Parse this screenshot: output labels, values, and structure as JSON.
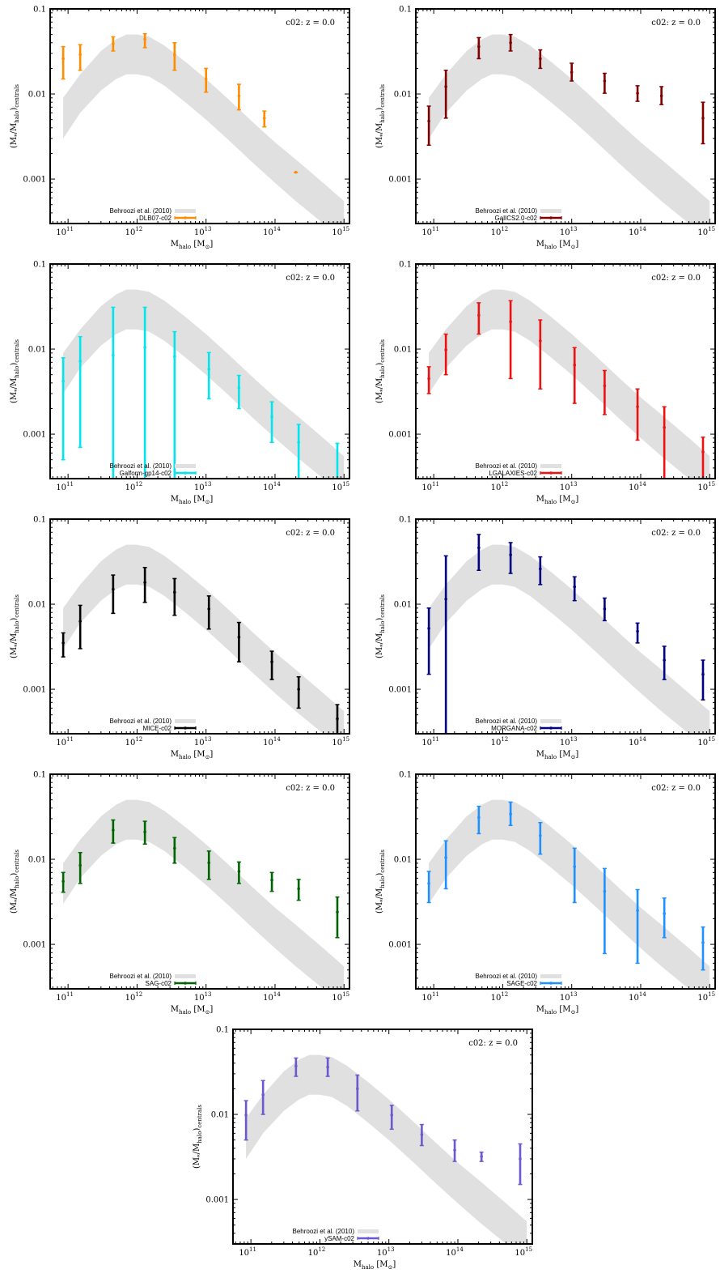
{
  "common": {
    "xlabel": "M_halo [M_sun]",
    "ylabel": "(M*/M_halo)_centrals",
    "x_ticks": [
      100000000000.0,
      1000000000000.0,
      10000000000000.0,
      100000000000000.0,
      1000000000000000.0
    ],
    "x_tick_labels": [
      "11",
      "12",
      "13",
      "14",
      "15"
    ],
    "y_ticks": [
      0.001,
      0.01,
      0.1
    ],
    "y_tick_labels": [
      "0.001",
      "0.01",
      "0.1"
    ],
    "xlim": [
      55000000000.0,
      1200000000000000.0
    ],
    "ylim": [
      0.0003,
      0.1
    ],
    "log_x": true,
    "log_y": true,
    "band_label": "Behroozi et al. (2010)",
    "band_color": "#e0e0e0",
    "band": {
      "x": [
        85000000000.0,
        150000000000.0,
        300000000000.0,
        500000000000.0,
        700000000000.0,
        1000000000000.0,
        1500000000000.0,
        2500000000000.0,
        5000000000000.0,
        10000000000000.0,
        20000000000000.0,
        50000000000000.0,
        100000000000000.0,
        200000000000000.0,
        500000000000000.0,
        1000000000000000.0
      ],
      "upper": [
        0.009,
        0.017,
        0.032,
        0.044,
        0.05,
        0.05,
        0.047,
        0.037,
        0.024,
        0.015,
        0.009,
        0.0045,
        0.0027,
        0.0017,
        0.0009,
        0.00055
      ],
      "lower": [
        0.003,
        0.006,
        0.011,
        0.015,
        0.017,
        0.017,
        0.016,
        0.0125,
        0.008,
        0.005,
        0.003,
        0.0015,
        0.0009,
        0.00055,
        0.0003,
        0.00018
      ]
    }
  },
  "chart_data": [
    {
      "type": "scatter",
      "title": "c02: z = 0.0",
      "series": [
        {
          "name": "DLB07-c02",
          "color": "#ff8c00",
          "x": [
            85000000000.0,
            150000000000.0,
            450000000000.0,
            1300000000000.0,
            3500000000000.0,
            10000000000000.0,
            30000000000000.0,
            70000000000000.0,
            200000000000000.0
          ],
          "y": [
            0.026,
            0.029,
            0.039,
            0.044,
            0.029,
            0.015,
            0.0095,
            0.0052,
            0.0012
          ],
          "y_low": [
            0.015,
            0.019,
            0.032,
            0.035,
            0.019,
            0.0105,
            0.0065,
            0.0041,
            0.0012
          ],
          "y_high": [
            0.036,
            0.038,
            0.047,
            0.051,
            0.04,
            0.02,
            0.013,
            0.0063,
            0.0012
          ]
        }
      ]
    },
    {
      "type": "scatter",
      "title": "c02: z = 0.0",
      "series": [
        {
          "name": "GalICS2.0-c02",
          "color": "#800000",
          "x": [
            85000000000.0,
            150000000000.0,
            450000000000.0,
            1300000000000.0,
            3500000000000.0,
            10000000000000.0,
            30000000000000.0,
            90000000000000.0,
            200000000000000.0,
            800000000000000.0
          ],
          "y": [
            0.0048,
            0.0122,
            0.036,
            0.04,
            0.026,
            0.018,
            0.0142,
            0.0102,
            0.0095,
            0.0052
          ],
          "y_low": [
            0.0025,
            0.0052,
            0.026,
            0.032,
            0.02,
            0.0142,
            0.0102,
            0.0082,
            0.0075,
            0.0026
          ],
          "y_high": [
            0.0072,
            0.019,
            0.046,
            0.05,
            0.033,
            0.023,
            0.0175,
            0.0125,
            0.0122,
            0.008
          ]
        }
      ]
    },
    {
      "type": "scatter",
      "title": "c02: z = 0.0",
      "series": [
        {
          "name": "Galform-gp14-c02",
          "color": "#00e5ee",
          "x": [
            85000000000.0,
            150000000000.0,
            450000000000.0,
            1300000000000.0,
            3500000000000.0,
            11000000000000.0,
            30000000000000.0,
            90000000000000.0,
            220000000000000.0,
            800000000000000.0
          ],
          "y": [
            0.0042,
            0.0072,
            0.0085,
            0.0105,
            0.0082,
            0.0058,
            0.0035,
            0.0016,
            0.0008,
            0.0003
          ],
          "y_low": [
            0.0005,
            0.0007,
            0.0003,
            0.0003,
            0.0003,
            0.0026,
            0.002,
            0.0008,
            0.0003,
            0.0003
          ],
          "y_high": [
            0.0079,
            0.014,
            0.031,
            0.031,
            0.016,
            0.0091,
            0.0049,
            0.0024,
            0.0013,
            0.00078
          ]
        }
      ]
    },
    {
      "type": "scatter",
      "title": "c02: z = 0.0",
      "series": [
        {
          "name": "LGALAXIES-c02",
          "color": "#ee1111",
          "x": [
            85000000000.0,
            150000000000.0,
            450000000000.0,
            1300000000000.0,
            3500000000000.0,
            11000000000000.0,
            30000000000000.0,
            90000000000000.0,
            220000000000000.0,
            800000000000000.0
          ],
          "y": [
            0.0045,
            0.0098,
            0.025,
            0.021,
            0.0125,
            0.0065,
            0.0037,
            0.0021,
            0.0012,
            0.00062
          ],
          "y_low": [
            0.003,
            0.005,
            0.015,
            0.0045,
            0.0034,
            0.0023,
            0.0017,
            0.00085,
            0.0003,
            0.0003
          ],
          "y_high": [
            0.0062,
            0.015,
            0.035,
            0.037,
            0.022,
            0.0104,
            0.0056,
            0.0034,
            0.0021,
            0.00092
          ]
        }
      ]
    },
    {
      "type": "scatter",
      "title": "c02: z = 0.0",
      "series": [
        {
          "name": "MICE-c02",
          "color": "#000000",
          "x": [
            85000000000.0,
            150000000000.0,
            450000000000.0,
            1300000000000.0,
            3500000000000.0,
            11000000000000.0,
            30000000000000.0,
            90000000000000.0,
            220000000000000.0,
            800000000000000.0
          ],
          "y": [
            0.0035,
            0.0063,
            0.015,
            0.018,
            0.0138,
            0.0088,
            0.0041,
            0.0021,
            0.001,
            0.00045
          ],
          "y_low": [
            0.0024,
            0.003,
            0.0078,
            0.0105,
            0.0074,
            0.0051,
            0.0021,
            0.0013,
            0.0006,
            0.0003
          ],
          "y_high": [
            0.0046,
            0.0097,
            0.022,
            0.027,
            0.02,
            0.0125,
            0.0061,
            0.0028,
            0.0014,
            0.00066
          ]
        }
      ]
    },
    {
      "type": "scatter",
      "title": "c02: z = 0.0",
      "series": [
        {
          "name": "MORGANA-c02",
          "color": "#000080",
          "x": [
            85000000000.0,
            150000000000.0,
            450000000000.0,
            1300000000000.0,
            3500000000000.0,
            11000000000000.0,
            30000000000000.0,
            90000000000000.0,
            220000000000000.0,
            800000000000000.0
          ],
          "y": [
            0.0052,
            0.0115,
            0.046,
            0.038,
            0.026,
            0.016,
            0.0088,
            0.0048,
            0.0022,
            0.0015
          ],
          "y_low": [
            0.0015,
            0.0003,
            0.025,
            0.023,
            0.017,
            0.011,
            0.0064,
            0.0035,
            0.0013,
            0.00075
          ],
          "y_high": [
            0.009,
            0.037,
            0.066,
            0.053,
            0.036,
            0.021,
            0.0118,
            0.006,
            0.0032,
            0.0022
          ]
        }
      ]
    },
    {
      "type": "scatter",
      "title": "c02: z = 0.0",
      "series": [
        {
          "name": "SAG-c02",
          "color": "#006400",
          "x": [
            85000000000.0,
            150000000000.0,
            450000000000.0,
            1300000000000.0,
            3500000000000.0,
            11000000000000.0,
            30000000000000.0,
            90000000000000.0,
            220000000000000.0,
            800000000000000.0
          ],
          "y": [
            0.0055,
            0.0085,
            0.022,
            0.021,
            0.0135,
            0.0091,
            0.0072,
            0.0057,
            0.0045,
            0.0024
          ],
          "y_low": [
            0.0041,
            0.0052,
            0.0155,
            0.0151,
            0.009,
            0.0058,
            0.0052,
            0.0042,
            0.0033,
            0.0012
          ],
          "y_high": [
            0.007,
            0.012,
            0.029,
            0.028,
            0.018,
            0.0125,
            0.0093,
            0.007,
            0.0058,
            0.0036
          ]
        }
      ]
    },
    {
      "type": "scatter",
      "title": "c02: z = 0.0",
      "series": [
        {
          "name": "SAGE-c02",
          "color": "#1e90ff",
          "x": [
            85000000000.0,
            150000000000.0,
            450000000000.0,
            1300000000000.0,
            3500000000000.0,
            11000000000000.0,
            30000000000000.0,
            90000000000000.0,
            220000000000000.0,
            800000000000000.0
          ],
          "y": [
            0.0052,
            0.0105,
            0.031,
            0.034,
            0.019,
            0.0082,
            0.0042,
            0.0025,
            0.0023,
            0.00105
          ],
          "y_low": [
            0.0031,
            0.0045,
            0.02,
            0.025,
            0.0115,
            0.0031,
            0.00078,
            0.0006,
            0.0012,
            0.0005
          ],
          "y_high": [
            0.0072,
            0.0165,
            0.042,
            0.047,
            0.027,
            0.0135,
            0.0078,
            0.0044,
            0.0035,
            0.0016
          ]
        }
      ]
    },
    {
      "type": "scatter",
      "title": "c02: z = 0.0",
      "series": [
        {
          "name": "ySAM-c02",
          "color": "#6a5acd",
          "x": [
            85000000000.0,
            150000000000.0,
            450000000000.0,
            1300000000000.0,
            3500000000000.0,
            11000000000000.0,
            30000000000000.0,
            90000000000000.0,
            220000000000000.0,
            800000000000000.0
          ],
          "y": [
            0.0098,
            0.017,
            0.037,
            0.036,
            0.02,
            0.0098,
            0.0058,
            0.0038,
            0.0032,
            0.003
          ],
          "y_low": [
            0.005,
            0.01,
            0.028,
            0.028,
            0.011,
            0.0067,
            0.0043,
            0.0028,
            0.0028,
            0.0015
          ],
          "y_high": [
            0.0145,
            0.025,
            0.046,
            0.046,
            0.029,
            0.0128,
            0.0076,
            0.005,
            0.0036,
            0.0045
          ]
        }
      ]
    }
  ]
}
